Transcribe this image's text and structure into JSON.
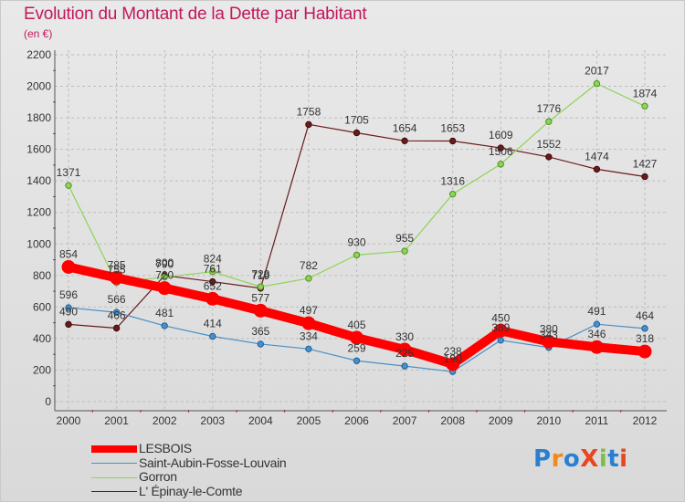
{
  "title": "Evolution du Montant de la Dette par Habitant",
  "unit_label": "(en €)",
  "logo_text": "ProXiti",
  "chart_data": {
    "type": "line",
    "x": [
      "2000",
      "2001",
      "2002",
      "2003",
      "2004",
      "2005",
      "2006",
      "2007",
      "2008",
      "2009",
      "2010",
      "2011",
      "2012"
    ],
    "ylim": [
      0,
      2200
    ],
    "yticks": [
      0,
      200,
      400,
      600,
      800,
      1000,
      1200,
      1400,
      1600,
      1800,
      2000,
      2200
    ],
    "grid": true,
    "legend_placement": "bottom-left",
    "series": [
      {
        "name": "LESBOIS",
        "color": "#ff0000",
        "values": [
          854,
          785,
          720,
          652,
          577,
          497,
          405,
          330,
          238,
          450,
          380,
          346,
          318
        ]
      },
      {
        "name": "Saint-Aubin-Fosse-Louvain",
        "color": "#4a90c8",
        "values": [
          596,
          566,
          481,
          414,
          365,
          334,
          259,
          225,
          190,
          389,
          343,
          491,
          464
        ]
      },
      {
        "name": "Gorron",
        "color": "#8ed456",
        "values": [
          1371,
          755,
          790,
          824,
          728,
          782,
          930,
          955,
          1316,
          1506,
          1776,
          2017,
          1874
        ]
      },
      {
        "name": "L' Épinay-le-Comte",
        "color": "#6b1a1a",
        "values": [
          490,
          466,
          800,
          761,
          719,
          1758,
          1705,
          1654,
          1653,
          1609,
          1552,
          1474,
          1427
        ]
      }
    ],
    "data_labels": [
      [
        "854",
        "785",
        "720",
        "652",
        "577",
        "497",
        "405",
        "330",
        "238",
        "450",
        "380",
        "346",
        "318"
      ],
      [
        "596",
        "566",
        "481",
        "414",
        "365",
        "334",
        "259",
        "225",
        "190",
        "389",
        "343",
        "491",
        "464"
      ],
      [
        "1371",
        "755",
        "790",
        "824",
        "728",
        "782",
        "930",
        "955",
        "1316",
        "1506",
        "1776",
        "2017",
        "1874"
      ],
      [
        "490",
        "466",
        "800",
        "761",
        "719",
        "1758",
        "1705",
        "1654",
        "1653",
        "1609",
        "1552",
        "1474",
        "1427"
      ]
    ]
  }
}
